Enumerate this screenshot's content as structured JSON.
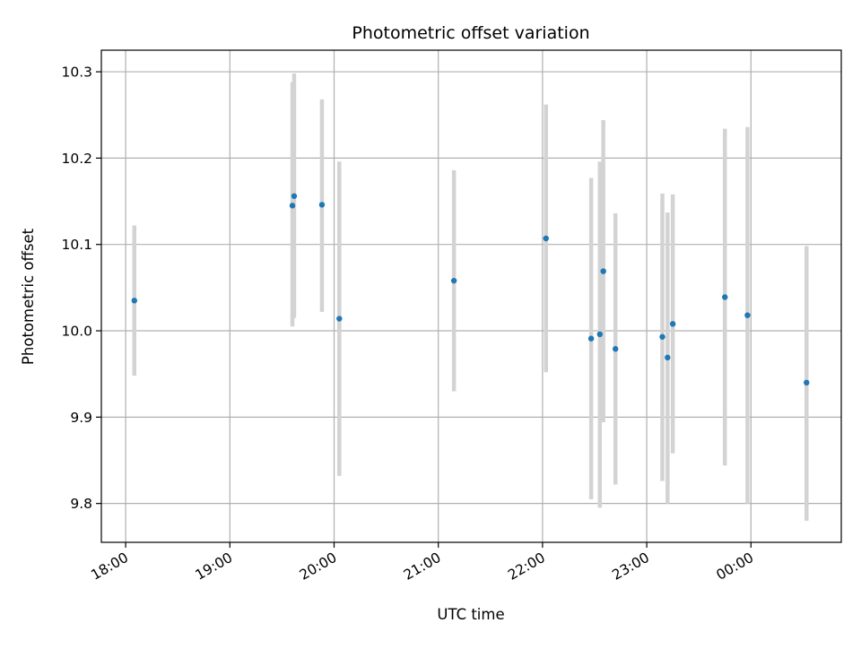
{
  "chart_data": {
    "type": "scatter",
    "title": "Photometric offset variation",
    "xlabel": "UTC time",
    "ylabel": "Photometric offset",
    "x_ticks": [
      "18:00",
      "19:00",
      "20:00",
      "21:00",
      "22:00",
      "23:00",
      "00:00"
    ],
    "y_ticks": [
      "9.8",
      "9.9",
      "10.0",
      "10.1",
      "10.2",
      "10.3"
    ],
    "xlim": [
      "17:46",
      "00:52"
    ],
    "ylim": [
      9.755,
      10.325
    ],
    "grid": true,
    "colors": {
      "point": "#1f77b4",
      "errorbar": "#d3d3d3"
    },
    "series": [
      {
        "points": [
          {
            "t": "18:05",
            "y": 10.035,
            "ylo": 9.948,
            "yhi": 10.122
          },
          {
            "t": "19:36",
            "y": 10.145,
            "ylo": 10.005,
            "yhi": 10.288
          },
          {
            "t": "19:37",
            "y": 10.156,
            "ylo": 10.015,
            "yhi": 10.298
          },
          {
            "t": "19:53",
            "y": 10.146,
            "ylo": 10.022,
            "yhi": 10.268
          },
          {
            "t": "20:03",
            "y": 10.014,
            "ylo": 9.832,
            "yhi": 10.196
          },
          {
            "t": "21:09",
            "y": 10.058,
            "ylo": 9.93,
            "yhi": 10.186
          },
          {
            "t": "22:02",
            "y": 10.107,
            "ylo": 9.952,
            "yhi": 10.262
          },
          {
            "t": "22:28",
            "y": 9.991,
            "ylo": 9.805,
            "yhi": 10.177
          },
          {
            "t": "22:33",
            "y": 9.996,
            "ylo": 9.795,
            "yhi": 10.196
          },
          {
            "t": "22:35",
            "y": 10.069,
            "ylo": 9.894,
            "yhi": 10.244
          },
          {
            "t": "22:42",
            "y": 9.979,
            "ylo": 9.822,
            "yhi": 10.136
          },
          {
            "t": "23:09",
            "y": 9.993,
            "ylo": 9.826,
            "yhi": 10.159
          },
          {
            "t": "23:12",
            "y": 9.969,
            "ylo": 9.8,
            "yhi": 10.137
          },
          {
            "t": "23:15",
            "y": 10.008,
            "ylo": 9.858,
            "yhi": 10.158
          },
          {
            "t": "23:45",
            "y": 10.039,
            "ylo": 9.844,
            "yhi": 10.234
          },
          {
            "t": "23:58",
            "y": 10.018,
            "ylo": 9.8,
            "yhi": 10.236
          },
          {
            "t": "00:32",
            "y": 9.94,
            "ylo": 9.78,
            "yhi": 10.098
          }
        ]
      }
    ]
  }
}
